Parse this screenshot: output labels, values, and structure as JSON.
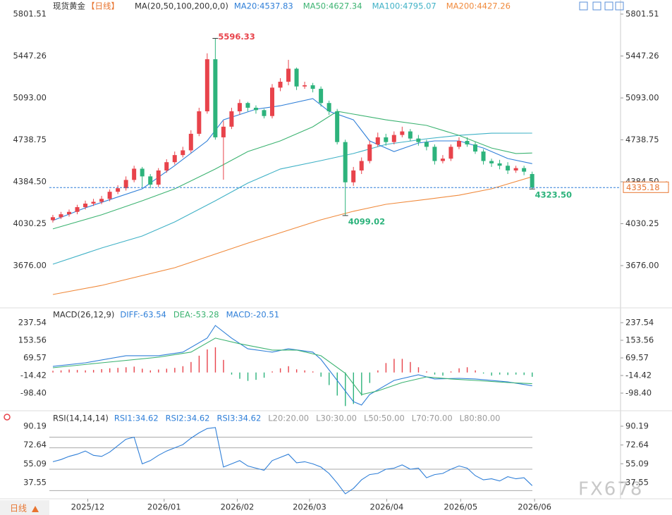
{
  "chart_data": [
    {
      "type": "candlestick",
      "title": "现货黄金",
      "subtitle": "【日线】",
      "indicator": "MA(20,50,100,200,0,0)",
      "up_color": "#e8434b",
      "down_color": "#2db37c",
      "xlim": [
        -0.43,
        69.88
      ],
      "ylim": [
        3318.8,
        5920.6
      ],
      "yticks": [
        5801.51,
        5447.26,
        {
          "value": 5093,
          "label": "5093.00"
        },
        4738.75,
        {
          "value": 4384.5,
          "label": "4384.50"
        },
        4030.25,
        {
          "value": 3676,
          "label": "3676.00"
        }
      ],
      "open": [
        4060,
        4085,
        4110,
        4130,
        4170,
        4200,
        4215,
        4240,
        4300,
        4330,
        4400,
        4495,
        4430,
        4360,
        4480,
        4550,
        4610,
        4650,
        4790,
        4980,
        5420,
        4760,
        4850,
        4980,
        5050,
        5010,
        4990,
        4940,
        5180,
        5230,
        5340,
        5190,
        5200,
        5170,
        5050,
        4980,
        4720,
        4380,
        4480,
        4560,
        4700,
        4760,
        4720,
        4780,
        4810,
        4750,
        4720,
        4680,
        4560,
        4580,
        4680,
        4730,
        4700,
        4640,
        4560,
        4540,
        4520,
        4480,
        4500,
        4450
      ],
      "high": [
        4105,
        4130,
        4150,
        4190,
        4225,
        4240,
        4265,
        4320,
        4355,
        4430,
        4520,
        4510,
        4450,
        4500,
        4575,
        4640,
        4680,
        4820,
        5010,
        5470,
        5596.33,
        4900,
        5010,
        5080,
        5060,
        5030,
        5000,
        5210,
        5260,
        5415,
        5350,
        5230,
        5220,
        5190,
        5070,
        5000,
        4740,
        4510,
        4590,
        4730,
        4800,
        4790,
        4810,
        4850,
        4830,
        4780,
        4740,
        4700,
        4610,
        4700,
        4760,
        4760,
        4720,
        4660,
        4580,
        4570,
        4550,
        4520,
        4520,
        4470
      ],
      "low": [
        4040,
        4070,
        4090,
        4110,
        4150,
        4180,
        4195,
        4220,
        4280,
        4310,
        4380,
        4340,
        4330,
        4340,
        4460,
        4530,
        4590,
        4630,
        4770,
        4960,
        4740,
        4402,
        4830,
        4950,
        4980,
        4960,
        4920,
        4920,
        5150,
        5200,
        5160,
        5170,
        5140,
        5020,
        4950,
        4700,
        4099.02,
        4350,
        4450,
        4540,
        4680,
        4690,
        4700,
        4760,
        4730,
        4690,
        4650,
        4530,
        4540,
        4560,
        4660,
        4680,
        4620,
        4530,
        4510,
        4490,
        4450,
        4460,
        4440,
        4323.5
      ],
      "close": [
        4085,
        4110,
        4130,
        4170,
        4200,
        4215,
        4240,
        4300,
        4330,
        4400,
        4495,
        4430,
        4360,
        4480,
        4550,
        4610,
        4650,
        4790,
        4980,
        5420,
        4760,
        4850,
        4980,
        5050,
        5010,
        4990,
        4940,
        5180,
        5230,
        5340,
        5190,
        5200,
        5170,
        5050,
        4980,
        4720,
        4380,
        4480,
        4560,
        4700,
        4760,
        4720,
        4780,
        4810,
        4750,
        4720,
        4680,
        4560,
        4580,
        4680,
        4730,
        4700,
        4640,
        4560,
        4540,
        4520,
        4480,
        4500,
        4470,
        4335.18
      ],
      "lines": [
        {
          "name": "MA20:4537.83",
          "color": "#2f7fd8",
          "x": [
            0,
            4,
            11,
            15,
            19,
            21,
            25,
            28,
            32,
            34,
            37,
            39,
            42,
            45,
            47,
            50,
            53,
            56,
            59
          ],
          "values": [
            4057,
            4164,
            4325,
            4521,
            4730,
            4908,
            4998,
            5027,
            5087,
            4980,
            4908,
            4730,
            4640,
            4712,
            4730,
            4730,
            4670,
            4581,
            4537.83
          ]
        },
        {
          "name": "MA50:4627.34",
          "color": "#3cb371",
          "x": [
            0,
            6,
            11,
            15,
            20,
            24,
            28,
            32,
            35,
            37,
            41,
            46,
            50,
            54,
            57,
            59
          ],
          "values": [
            3986,
            4105,
            4224,
            4325,
            4492,
            4640,
            4730,
            4849,
            4980,
            4956,
            4908,
            4861,
            4777,
            4670,
            4623,
            4627.34
          ]
        },
        {
          "name": "MA100:4795.07",
          "color": "#3fb1c6",
          "x": [
            0,
            6,
            11,
            15,
            20,
            24,
            28,
            33,
            37,
            41,
            46,
            50,
            54,
            59
          ],
          "values": [
            3688,
            3825,
            3926,
            4045,
            4224,
            4373,
            4492,
            4563,
            4623,
            4700,
            4748,
            4777,
            4795,
            4795.07
          ]
        },
        {
          "name": "MA200:4427.26",
          "color": "#f08a3c",
          "x": [
            0,
            6,
            15,
            24,
            33,
            37,
            41,
            46,
            50,
            54,
            59
          ],
          "values": [
            3432,
            3509,
            3658,
            3866,
            4063,
            4135,
            4194,
            4236,
            4271,
            4325,
            4427.26
          ]
        }
      ],
      "last_price": 4335.18,
      "last_price_color": "#e8742f",
      "annotations": [
        {
          "x": 20,
          "value": 5596.33,
          "color": "#e8434b"
        },
        {
          "x": 36,
          "value": 4099.02,
          "color": "#2db37c"
        },
        {
          "x": 59,
          "value": 4323.5,
          "label": "4323.50",
          "color": "#2db37c"
        }
      ]
    },
    {
      "type": "macd",
      "title": "MACD(26,12,9)",
      "xlim": [
        -0.43,
        69.88
      ],
      "ylim": [
        -179,
        298
      ],
      "yticks": [
        237.54,
        153.56,
        69.57,
        -14.42,
        {
          "value": -98.4,
          "label": "-98.40"
        }
      ],
      "series": [
        {
          "name": "DIFF:-63.54",
          "color": "#2f7fd8",
          "x": [
            0,
            4,
            9,
            13,
            16,
            19,
            20,
            22,
            24,
            27,
            29,
            32,
            33,
            35,
            37,
            38,
            39,
            42,
            45,
            47,
            50,
            52,
            56,
            59
          ],
          "values": [
            29,
            46,
            80,
            80,
            97,
            164,
            224,
            164,
            113,
            97,
            113,
            97,
            63,
            -38,
            -139,
            -155,
            -105,
            -38,
            -11,
            -31,
            -28,
            -31,
            -45,
            -63.54
          ]
        },
        {
          "name": "DEA:-53.28",
          "color": "#3cb371",
          "x": [
            0,
            6,
            13,
            17,
            20,
            23,
            27,
            30,
            33,
            36,
            38,
            40,
            43,
            46,
            49,
            52,
            56,
            59
          ],
          "values": [
            22.5,
            46,
            73,
            97,
            164,
            137,
            107,
            107,
            80,
            -4,
            -105,
            -88,
            -48,
            -21,
            -31,
            -38,
            -48,
            -53.28
          ]
        }
      ],
      "histogram": {
        "name": "MACD:-20.51",
        "name_color": "#2f7fd8",
        "up_color": "#e8434b",
        "down_color": "#2db37c",
        "values": [
          8,
          10,
          14,
          12,
          10,
          12,
          16,
          20,
          22,
          25,
          28,
          18,
          10,
          14,
          18,
          22,
          30,
          50,
          80,
          110,
          120,
          60,
          -10,
          -30,
          -40,
          -35,
          -25,
          5,
          20,
          30,
          15,
          10,
          5,
          -20,
          -60,
          -110,
          -160,
          -150,
          -110,
          -50,
          10,
          45,
          65,
          65,
          50,
          25,
          5,
          -10,
          -15,
          5,
          20,
          25,
          10,
          -5,
          -15,
          -10,
          -12,
          -10,
          -12,
          -20.51
        ]
      }
    },
    {
      "type": "line",
      "title": "RSI(14,14,14)",
      "xlim": [
        -0.43,
        69.88
      ],
      "ylim": [
        22.3,
        101.4
      ],
      "yticks": [
        90.19,
        72.64,
        55.09,
        37.55
      ],
      "series": [
        {
          "name": "RSI1:34.62",
          "color": "#2f7fd8",
          "values": [
            57,
            59,
            62,
            64,
            67,
            63,
            62,
            66,
            72,
            78,
            80,
            55,
            58,
            63,
            67,
            70,
            73,
            79,
            84,
            88,
            89,
            52,
            55,
            58,
            53,
            51,
            49,
            58,
            61,
            64,
            56,
            57,
            55,
            52,
            46,
            37,
            27,
            32,
            40,
            45,
            46,
            50,
            51,
            54,
            50,
            51,
            42,
            45,
            46,
            50,
            53,
            51,
            44,
            40,
            41,
            39,
            43,
            41,
            42,
            34.62
          ]
        }
      ],
      "extra_legend": [
        "RSI2:34.62",
        "RSI3:34.62"
      ],
      "levels": [
        20,
        30,
        50,
        70,
        80
      ],
      "level_labels": [
        "L20:20.00",
        "L30:30.00",
        "L50:50.00",
        "L70:70.00",
        "L80:80.00"
      ],
      "xticks": [
        {
          "value": 4.3,
          "label": "2025/12"
        },
        {
          "value": 13.7,
          "label": "2026/01"
        },
        {
          "value": 22.7,
          "label": "2026/02"
        },
        {
          "value": 31.6,
          "label": "2026/03"
        },
        {
          "value": 41.1,
          "label": "2026/04"
        },
        {
          "value": 50.2,
          "label": "2026/05"
        },
        {
          "value": 59.3,
          "label": "2026/06"
        }
      ]
    }
  ],
  "footer": {
    "period": "日线",
    "watermark": "FX678"
  }
}
